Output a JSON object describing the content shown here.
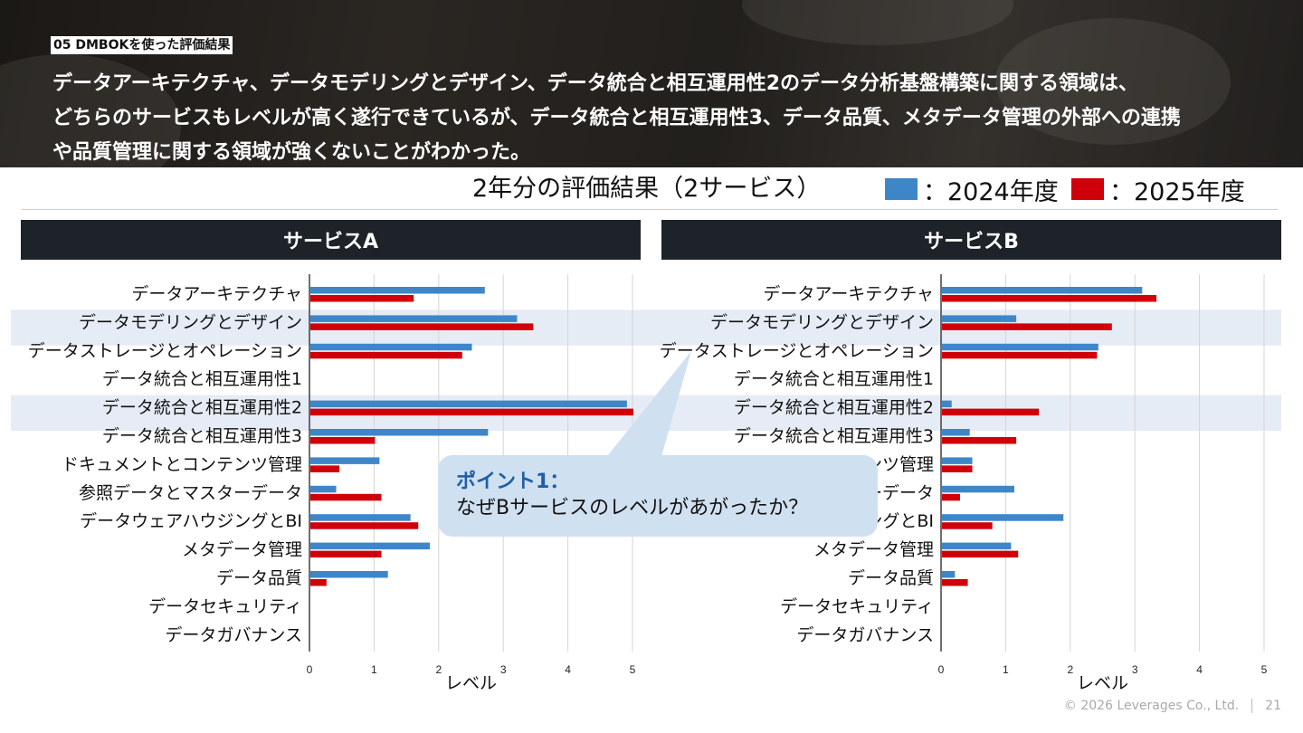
{
  "header": {
    "section_tag": "05 DMBOKを使った評価結果",
    "headline_lines": [
      "データアーキテクチャ、データモデリングとデザイン、データ統合と相互運用性2のデータ分析基盤構築に関する領域は、",
      "どちらのサービスもレベルが高く遂行できているが、データ統合と相互運用性3、データ品質、メタデータ管理の外部への連携",
      "や品質管理に関する領域が強くないことがわかった。"
    ]
  },
  "subtitle": "2年分の評価結果（2サービス）",
  "legend": [
    {
      "label": "：2024年度",
      "color": "#3f86c9"
    },
    {
      "label": "：2025年度",
      "color": "#d0000a"
    }
  ],
  "callout": {
    "title": "ポイント1：",
    "body": "なぜBサービスのレベルがあがったか？"
  },
  "footer": {
    "copyright": "© 2026 Leverages Co., Ltd.",
    "page_number": "21"
  },
  "chart_data": [
    {
      "type": "bar",
      "orientation": "horizontal",
      "title": "サービスA",
      "xlabel": "レベル",
      "xlim": [
        0,
        5
      ],
      "xticks": [
        "0",
        "1",
        "2",
        "3",
        "4",
        "5"
      ],
      "categories": [
        "データアーキテクチャ",
        "データモデリングとデザイン",
        "データストレージとオペレーション",
        "データ統合と相互運用性1",
        "データ統合と相互運用性2",
        "データ統合と相互運用性3",
        "ドキュメントとコンテンツ管理",
        "参照データとマスターデータ",
        "データウェアハウジングとBI",
        "メタデータ管理",
        "データ品質",
        "データセキュリティ",
        "データガバナンス"
      ],
      "highlighted_rows": [
        1,
        4
      ],
      "series": [
        {
          "name": "2024年度",
          "color": "#3f86c9",
          "values": [
            2.7,
            3.2,
            2.5,
            0,
            4.9,
            2.75,
            1.07,
            0.4,
            1.55,
            1.85,
            1.2,
            0,
            0
          ]
        },
        {
          "name": "2025年度",
          "color": "#d0000a",
          "values": [
            1.6,
            3.45,
            2.35,
            0,
            5.0,
            1.0,
            0.45,
            1.1,
            1.67,
            1.1,
            0.25,
            0,
            0
          ]
        }
      ]
    },
    {
      "type": "bar",
      "orientation": "horizontal",
      "title": "サービスB",
      "xlabel": "レベル",
      "xlim": [
        0,
        5
      ],
      "xticks": [
        "0",
        "1",
        "2",
        "3",
        "4",
        "5"
      ],
      "categories": [
        "データアーキテクチャ",
        "データモデリングとデザイン",
        "データストレージとオペレーション",
        "データ統合と相互運用性1",
        "データ統合と相互運用性2",
        "データ統合と相互運用性3",
        "ドキュメントとコンテンツ管理",
        "参照データとマスターデータ",
        "データウェアハウジングとBI",
        "メタデータ管理",
        "データ品質",
        "データセキュリティ",
        "データガバナンス"
      ],
      "highlighted_rows": [
        1,
        4
      ],
      "series": [
        {
          "name": "2024年度",
          "color": "#3f86c9",
          "values": [
            3.1,
            1.15,
            2.42,
            0,
            0.15,
            0.43,
            0.47,
            1.12,
            1.88,
            1.07,
            0.2,
            0,
            0
          ]
        },
        {
          "name": "2025年度",
          "color": "#d0000a",
          "values": [
            3.32,
            2.63,
            2.4,
            0,
            1.5,
            1.15,
            0.47,
            0.28,
            0.78,
            1.18,
            0.4,
            0,
            0
          ]
        }
      ]
    }
  ]
}
